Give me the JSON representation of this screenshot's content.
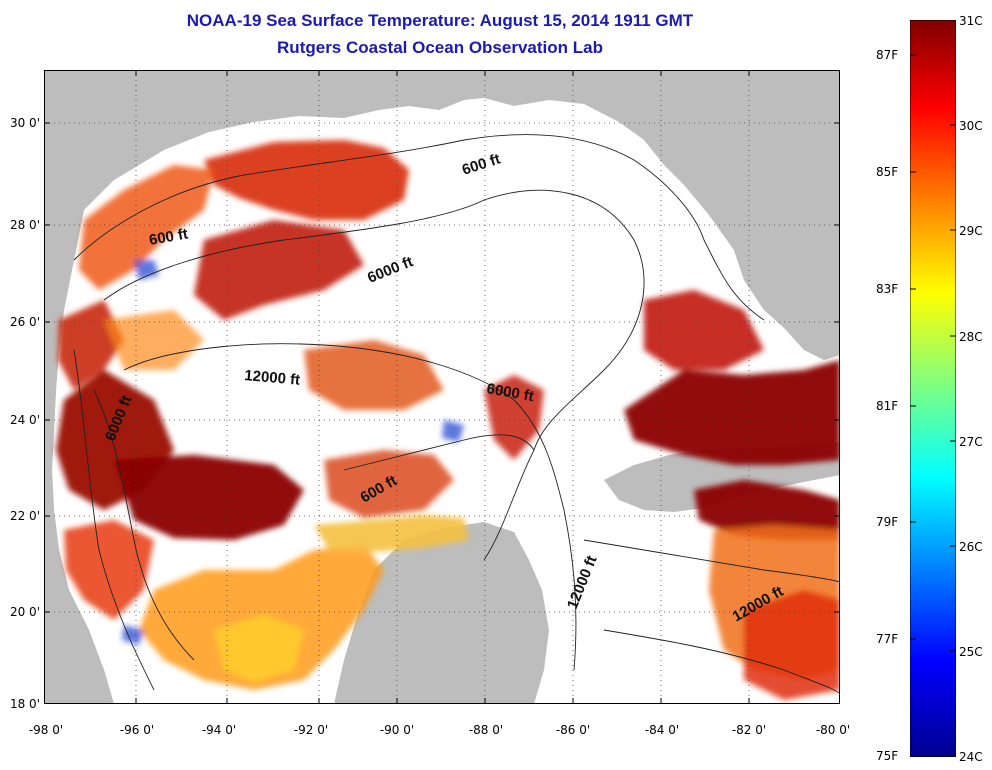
{
  "title": "NOAA-19 Sea Surface Temperature:  August 15, 2014 1911 GMT",
  "subtitle": "Rutgers Coastal Ocean Observation Lab",
  "lat_ticks": [
    "30 0'",
    "28 0'",
    "26 0'",
    "24 0'",
    "22 0'",
    "20 0'",
    "18 0'"
  ],
  "lon_ticks": [
    "-98 0'",
    "-96 0'",
    "-94 0'",
    "-92 0'",
    "-90 0'",
    "-88 0'",
    "-86 0'",
    "-84 0'",
    "-82 0'",
    "-80 0'"
  ],
  "contours": [
    {
      "label": "600 ft"
    },
    {
      "label": "600 ft"
    },
    {
      "label": "6000 ft"
    },
    {
      "label": "12000 ft"
    },
    {
      "label": "6000 ft"
    },
    {
      "label": "600 ft"
    },
    {
      "label": "6000 ft"
    },
    {
      "label": "12000 ft"
    },
    {
      "label": "12000 ft"
    }
  ],
  "colorbar": {
    "celsius": [
      "31C",
      "30C",
      "29C",
      "28C",
      "27C",
      "26C",
      "25C",
      "24C"
    ],
    "fahrenheit": [
      "87F",
      "85F",
      "83F",
      "81F",
      "79F",
      "77F",
      "75F"
    ]
  },
  "colors": {
    "title": "#1b1bb0",
    "land": "#bdbdbd",
    "ocean": "#ffffff",
    "sst_hot": "#8b0000",
    "sst_warm": "#e8300a",
    "sst_mid": "#ff9a10",
    "sst_cool": "#ffe020",
    "sst_cold": "#1a3acc"
  }
}
